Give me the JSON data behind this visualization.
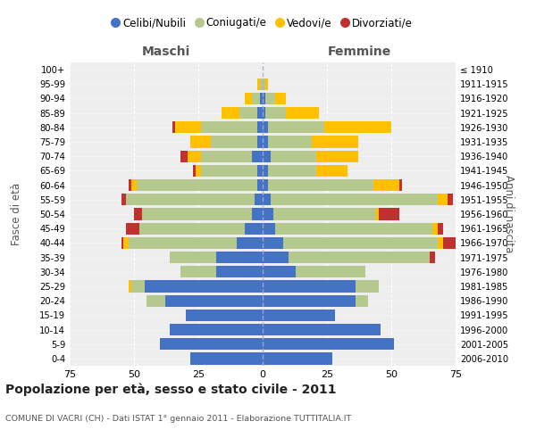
{
  "age_groups": [
    "0-4",
    "5-9",
    "10-14",
    "15-19",
    "20-24",
    "25-29",
    "30-34",
    "35-39",
    "40-44",
    "45-49",
    "50-54",
    "55-59",
    "60-64",
    "65-69",
    "70-74",
    "75-79",
    "80-84",
    "85-89",
    "90-94",
    "95-99",
    "100+"
  ],
  "birth_years": [
    "2006-2010",
    "2001-2005",
    "1996-2000",
    "1991-1995",
    "1986-1990",
    "1981-1985",
    "1976-1980",
    "1971-1975",
    "1966-1970",
    "1961-1965",
    "1956-1960",
    "1951-1955",
    "1946-1950",
    "1941-1945",
    "1936-1940",
    "1931-1935",
    "1926-1930",
    "1921-1925",
    "1916-1920",
    "1911-1915",
    "≤ 1910"
  ],
  "maschi": {
    "celibi": [
      28,
      40,
      36,
      30,
      38,
      46,
      18,
      18,
      10,
      7,
      4,
      3,
      2,
      2,
      4,
      2,
      2,
      2,
      1,
      0,
      0
    ],
    "coniugati": [
      0,
      0,
      0,
      0,
      7,
      5,
      14,
      18,
      42,
      41,
      43,
      50,
      47,
      22,
      20,
      18,
      22,
      7,
      3,
      1,
      0
    ],
    "vedovi": [
      0,
      0,
      0,
      0,
      0,
      1,
      0,
      0,
      2,
      0,
      0,
      0,
      2,
      2,
      5,
      8,
      10,
      7,
      3,
      1,
      0
    ],
    "divorziati": [
      0,
      0,
      0,
      0,
      0,
      0,
      0,
      0,
      1,
      5,
      3,
      2,
      1,
      1,
      3,
      0,
      1,
      0,
      0,
      0,
      0
    ]
  },
  "femmine": {
    "nubili": [
      27,
      51,
      46,
      28,
      36,
      36,
      13,
      10,
      8,
      5,
      4,
      3,
      2,
      2,
      3,
      2,
      2,
      1,
      1,
      0,
      0
    ],
    "coniugate": [
      0,
      0,
      0,
      0,
      5,
      9,
      27,
      55,
      60,
      61,
      40,
      65,
      41,
      19,
      18,
      17,
      22,
      8,
      4,
      1,
      0
    ],
    "vedove": [
      0,
      0,
      0,
      0,
      0,
      0,
      0,
      0,
      2,
      2,
      1,
      4,
      10,
      12,
      16,
      18,
      26,
      13,
      4,
      1,
      0
    ],
    "divorziate": [
      0,
      0,
      0,
      0,
      0,
      0,
      0,
      2,
      8,
      2,
      8,
      2,
      1,
      0,
      0,
      0,
      0,
      0,
      0,
      0,
      0
    ]
  },
  "colors": {
    "celibi": "#4472c4",
    "coniugati": "#b5c98e",
    "vedovi": "#ffc000",
    "divorziati": "#c0312f"
  },
  "legend_labels": [
    "Celibi/Nubili",
    "Coniugati/e",
    "Vedovi/e",
    "Divorziati/e"
  ],
  "title": "Popolazione per età, sesso e stato civile - 2011",
  "subtitle": "COMUNE DI VACRI (CH) - Dati ISTAT 1° gennaio 2011 - Elaborazione TUTTITALIA.IT",
  "xlabel_left": "Maschi",
  "xlabel_right": "Femmine",
  "ylabel_left": "Fasce di età",
  "ylabel_right": "Anni di nascita",
  "xlim": 75,
  "background_color": "#ffffff",
  "plot_bg": "#eeeeee",
  "grid_color": "#ffffff"
}
